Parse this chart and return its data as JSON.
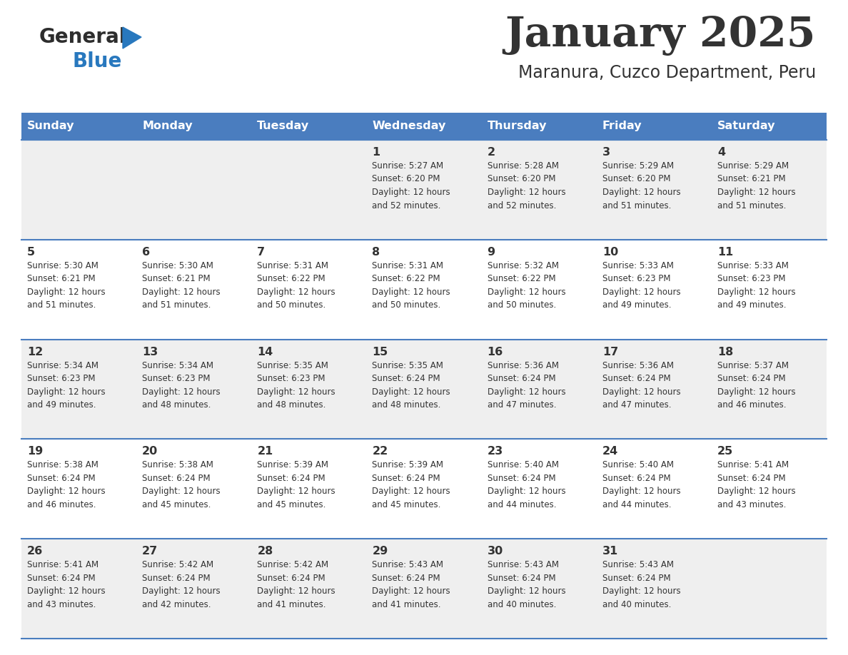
{
  "title": "January 2025",
  "subtitle": "Maranura, Cuzco Department, Peru",
  "header_bg_color": "#4a7dbf",
  "header_text_color": "#ffffff",
  "row_bg_even": "#efefef",
  "row_bg_odd": "#ffffff",
  "border_color": "#4a7dbf",
  "text_color": "#333333",
  "day_headers": [
    "Sunday",
    "Monday",
    "Tuesday",
    "Wednesday",
    "Thursday",
    "Friday",
    "Saturday"
  ],
  "logo_general_color": "#2d2d2d",
  "logo_blue_color": "#2878be",
  "calendar_data": [
    [
      {
        "day": "",
        "info": ""
      },
      {
        "day": "",
        "info": ""
      },
      {
        "day": "",
        "info": ""
      },
      {
        "day": "1",
        "info": "Sunrise: 5:27 AM\nSunset: 6:20 PM\nDaylight: 12 hours\nand 52 minutes."
      },
      {
        "day": "2",
        "info": "Sunrise: 5:28 AM\nSunset: 6:20 PM\nDaylight: 12 hours\nand 52 minutes."
      },
      {
        "day": "3",
        "info": "Sunrise: 5:29 AM\nSunset: 6:20 PM\nDaylight: 12 hours\nand 51 minutes."
      },
      {
        "day": "4",
        "info": "Sunrise: 5:29 AM\nSunset: 6:21 PM\nDaylight: 12 hours\nand 51 minutes."
      }
    ],
    [
      {
        "day": "5",
        "info": "Sunrise: 5:30 AM\nSunset: 6:21 PM\nDaylight: 12 hours\nand 51 minutes."
      },
      {
        "day": "6",
        "info": "Sunrise: 5:30 AM\nSunset: 6:21 PM\nDaylight: 12 hours\nand 51 minutes."
      },
      {
        "day": "7",
        "info": "Sunrise: 5:31 AM\nSunset: 6:22 PM\nDaylight: 12 hours\nand 50 minutes."
      },
      {
        "day": "8",
        "info": "Sunrise: 5:31 AM\nSunset: 6:22 PM\nDaylight: 12 hours\nand 50 minutes."
      },
      {
        "day": "9",
        "info": "Sunrise: 5:32 AM\nSunset: 6:22 PM\nDaylight: 12 hours\nand 50 minutes."
      },
      {
        "day": "10",
        "info": "Sunrise: 5:33 AM\nSunset: 6:23 PM\nDaylight: 12 hours\nand 49 minutes."
      },
      {
        "day": "11",
        "info": "Sunrise: 5:33 AM\nSunset: 6:23 PM\nDaylight: 12 hours\nand 49 minutes."
      }
    ],
    [
      {
        "day": "12",
        "info": "Sunrise: 5:34 AM\nSunset: 6:23 PM\nDaylight: 12 hours\nand 49 minutes."
      },
      {
        "day": "13",
        "info": "Sunrise: 5:34 AM\nSunset: 6:23 PM\nDaylight: 12 hours\nand 48 minutes."
      },
      {
        "day": "14",
        "info": "Sunrise: 5:35 AM\nSunset: 6:23 PM\nDaylight: 12 hours\nand 48 minutes."
      },
      {
        "day": "15",
        "info": "Sunrise: 5:35 AM\nSunset: 6:24 PM\nDaylight: 12 hours\nand 48 minutes."
      },
      {
        "day": "16",
        "info": "Sunrise: 5:36 AM\nSunset: 6:24 PM\nDaylight: 12 hours\nand 47 minutes."
      },
      {
        "day": "17",
        "info": "Sunrise: 5:36 AM\nSunset: 6:24 PM\nDaylight: 12 hours\nand 47 minutes."
      },
      {
        "day": "18",
        "info": "Sunrise: 5:37 AM\nSunset: 6:24 PM\nDaylight: 12 hours\nand 46 minutes."
      }
    ],
    [
      {
        "day": "19",
        "info": "Sunrise: 5:38 AM\nSunset: 6:24 PM\nDaylight: 12 hours\nand 46 minutes."
      },
      {
        "day": "20",
        "info": "Sunrise: 5:38 AM\nSunset: 6:24 PM\nDaylight: 12 hours\nand 45 minutes."
      },
      {
        "day": "21",
        "info": "Sunrise: 5:39 AM\nSunset: 6:24 PM\nDaylight: 12 hours\nand 45 minutes."
      },
      {
        "day": "22",
        "info": "Sunrise: 5:39 AM\nSunset: 6:24 PM\nDaylight: 12 hours\nand 45 minutes."
      },
      {
        "day": "23",
        "info": "Sunrise: 5:40 AM\nSunset: 6:24 PM\nDaylight: 12 hours\nand 44 minutes."
      },
      {
        "day": "24",
        "info": "Sunrise: 5:40 AM\nSunset: 6:24 PM\nDaylight: 12 hours\nand 44 minutes."
      },
      {
        "day": "25",
        "info": "Sunrise: 5:41 AM\nSunset: 6:24 PM\nDaylight: 12 hours\nand 43 minutes."
      }
    ],
    [
      {
        "day": "26",
        "info": "Sunrise: 5:41 AM\nSunset: 6:24 PM\nDaylight: 12 hours\nand 43 minutes."
      },
      {
        "day": "27",
        "info": "Sunrise: 5:42 AM\nSunset: 6:24 PM\nDaylight: 12 hours\nand 42 minutes."
      },
      {
        "day": "28",
        "info": "Sunrise: 5:42 AM\nSunset: 6:24 PM\nDaylight: 12 hours\nand 41 minutes."
      },
      {
        "day": "29",
        "info": "Sunrise: 5:43 AM\nSunset: 6:24 PM\nDaylight: 12 hours\nand 41 minutes."
      },
      {
        "day": "30",
        "info": "Sunrise: 5:43 AM\nSunset: 6:24 PM\nDaylight: 12 hours\nand 40 minutes."
      },
      {
        "day": "31",
        "info": "Sunrise: 5:43 AM\nSunset: 6:24 PM\nDaylight: 12 hours\nand 40 minutes."
      },
      {
        "day": "",
        "info": ""
      }
    ]
  ],
  "fig_width": 11.88,
  "fig_height": 9.18,
  "dpi": 100
}
